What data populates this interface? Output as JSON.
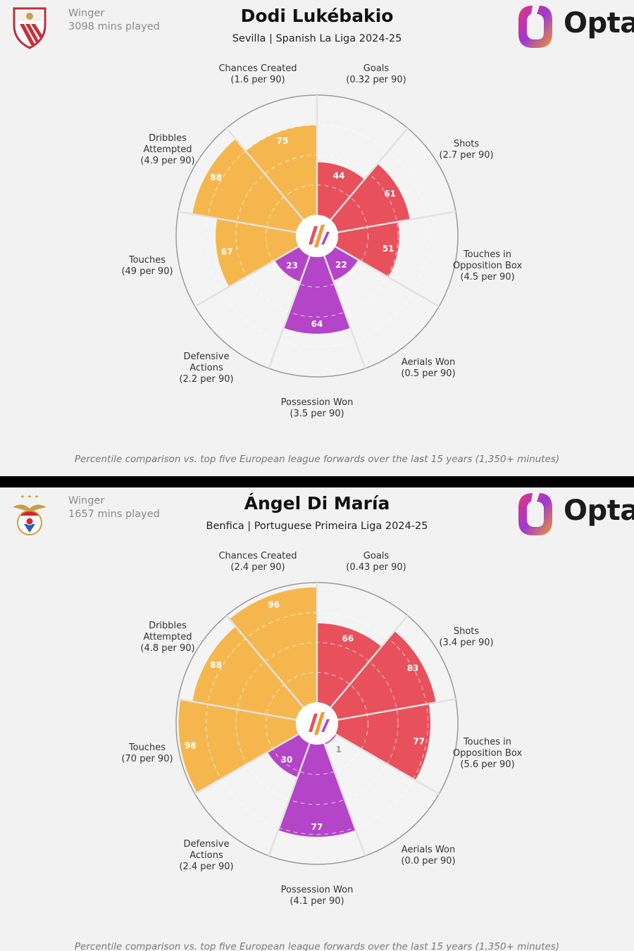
{
  "colors": {
    "attacking": "#e8505b",
    "possession": "#f5b74d",
    "defending": "#b444c8",
    "background": "#f2f2f2"
  },
  "panels": [
    {
      "role": "Winger",
      "minutes": "3098 mins played",
      "player": "Dodi Lukébakio",
      "subtitle": "Sevilla | Spanish La Liga 2024-25",
      "crest_icon": "sevilla-crest-icon",
      "logo_text": "Opta",
      "footnote": "Percentile comparison vs. top five European league forwards over the last 15 years (1,350+ minutes)",
      "chart_data": {
        "type": "polar-bar",
        "title": "Dodi Lukébakio",
        "rlim": [
          0,
          100
        ],
        "categories": [
          "Goals",
          "Shots",
          "Touches in Opposition Box",
          "Aerials Won",
          "Possession Won",
          "Defensive Actions",
          "Touches",
          "Dribbles Attempted",
          "Chances Created"
        ],
        "labels": [
          {
            "line1": "Goals",
            "line2": "",
            "line3": "(0.32 per 90)"
          },
          {
            "line1": "Shots",
            "line2": "",
            "line3": "(2.7 per 90)"
          },
          {
            "line1": "Touches in",
            "line2": "Opposition Box",
            "line3": "(4.5 per 90)"
          },
          {
            "line1": "Aerials Won",
            "line2": "",
            "line3": "(0.5 per 90)"
          },
          {
            "line1": "Possession Won",
            "line2": "",
            "line3": "(3.5 per 90)"
          },
          {
            "line1": "Defensive",
            "line2": "Actions",
            "line3": "(2.2 per 90)"
          },
          {
            "line1": "Touches",
            "line2": "",
            "line3": "(49 per 90)"
          },
          {
            "line1": "Dribbles",
            "line2": "Attempted",
            "line3": "(4.9 per 90)"
          },
          {
            "line1": "Chances Created",
            "line2": "",
            "line3": "(1.6 per 90)"
          }
        ],
        "values": [
          44,
          61,
          51,
          22,
          64,
          23,
          67,
          88,
          75
        ],
        "groups": [
          "attacking",
          "attacking",
          "attacking",
          "defending",
          "defending",
          "defending",
          "possession",
          "possession",
          "possession"
        ]
      }
    },
    {
      "role": "Winger",
      "minutes": "1657 mins played",
      "player": "Ángel Di María",
      "subtitle": "Benfica | Portuguese Primeira Liga 2024-25",
      "crest_icon": "benfica-crest-icon",
      "logo_text": "Opta",
      "footnote": "Percentile comparison vs. top five European league forwards over the last 15 years (1,350+ minutes)",
      "chart_data": {
        "type": "polar-bar",
        "title": "Ángel Di María",
        "rlim": [
          0,
          100
        ],
        "categories": [
          "Goals",
          "Shots",
          "Touches in Opposition Box",
          "Aerials Won",
          "Possession Won",
          "Defensive Actions",
          "Touches",
          "Dribbles Attempted",
          "Chances Created"
        ],
        "labels": [
          {
            "line1": "Goals",
            "line2": "",
            "line3": "(0.43 per 90)"
          },
          {
            "line1": "Shots",
            "line2": "",
            "line3": "(3.4 per 90)"
          },
          {
            "line1": "Touches in",
            "line2": "Opposition Box",
            "line3": "(5.6 per 90)"
          },
          {
            "line1": "Aerials Won",
            "line2": "",
            "line3": "(0.0 per 90)"
          },
          {
            "line1": "Possession Won",
            "line2": "",
            "line3": "(4.1 per 90)"
          },
          {
            "line1": "Defensive",
            "line2": "Actions",
            "line3": "(2.4 per 90)"
          },
          {
            "line1": "Touches",
            "line2": "",
            "line3": "(70 per 90)"
          },
          {
            "line1": "Dribbles",
            "line2": "Attempted",
            "line3": "(4.8 per 90)"
          },
          {
            "line1": "Chances Created",
            "line2": "",
            "line3": "(2.4 per 90)"
          }
        ],
        "values": [
          66,
          83,
          77,
          1,
          77,
          30,
          98,
          88,
          96
        ],
        "groups": [
          "attacking",
          "attacking",
          "attacking",
          "defending",
          "defending",
          "defending",
          "possession",
          "possession",
          "possession"
        ]
      }
    }
  ]
}
